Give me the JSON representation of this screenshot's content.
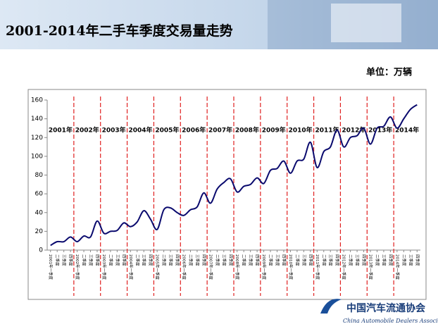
{
  "chart_data": {
    "type": "line",
    "title": "2001-2014年二手车季度交易量走势",
    "unit_label": "单位：万辆",
    "organization": "中国汽车流通协会",
    "organization_en": "China Automobile Dealers Association",
    "categories": [
      "2001年一季度",
      "二季度",
      "三季度",
      "四季度",
      "2002年一季度",
      "二季度",
      "三季度",
      "四季度",
      "2003年一季度",
      "二季度",
      "三季度",
      "四季度",
      "2004年一季度",
      "二季度",
      "三季度",
      "四季度",
      "2005年一季度",
      "二季度",
      "三季度",
      "四季度",
      "2006年一季度",
      "二季度",
      "三季度",
      "四季度",
      "2007年一季度",
      "二季度",
      "三季度",
      "四季度",
      "2008年一季度",
      "二季度",
      "三季度",
      "四季度",
      "2009年一季度",
      "二季度",
      "三季度",
      "四季度",
      "2010年一季度",
      "二季度",
      "三季度",
      "四季度",
      "2011年一季度",
      "二季度",
      "三季度",
      "四季度",
      "2012年一季度",
      "二季度",
      "三季度",
      "四季度",
      "2013年一季度",
      "二季度",
      "三季度",
      "四季度",
      "2014年一季度",
      "二季度",
      "三季度",
      "四季度"
    ],
    "values": [
      5,
      9,
      9,
      14,
      9,
      15,
      14,
      31,
      18,
      20,
      21,
      29,
      25,
      30,
      42,
      33,
      22,
      43,
      45,
      40,
      37,
      43,
      46,
      61,
      50,
      65,
      72,
      76,
      62,
      68,
      70,
      77,
      71,
      85,
      87,
      95,
      82,
      95,
      97,
      115,
      88,
      105,
      110,
      128,
      110,
      120,
      122,
      130,
      113,
      130,
      132,
      142,
      130,
      140,
      150,
      155
    ],
    "color": "#0a0a6e",
    "year_labels": [
      "2001年",
      "2002年",
      "2003年",
      "2004年",
      "2005年",
      "2006年",
      "2007年",
      "2008年",
      "2009年",
      "2010年",
      "2011年",
      "2012年",
      "2013年",
      "2014年"
    ],
    "ylim": [
      0,
      160
    ],
    "yticks": [
      0,
      20,
      40,
      60,
      80,
      100,
      120,
      140,
      160
    ],
    "grid": false
  }
}
